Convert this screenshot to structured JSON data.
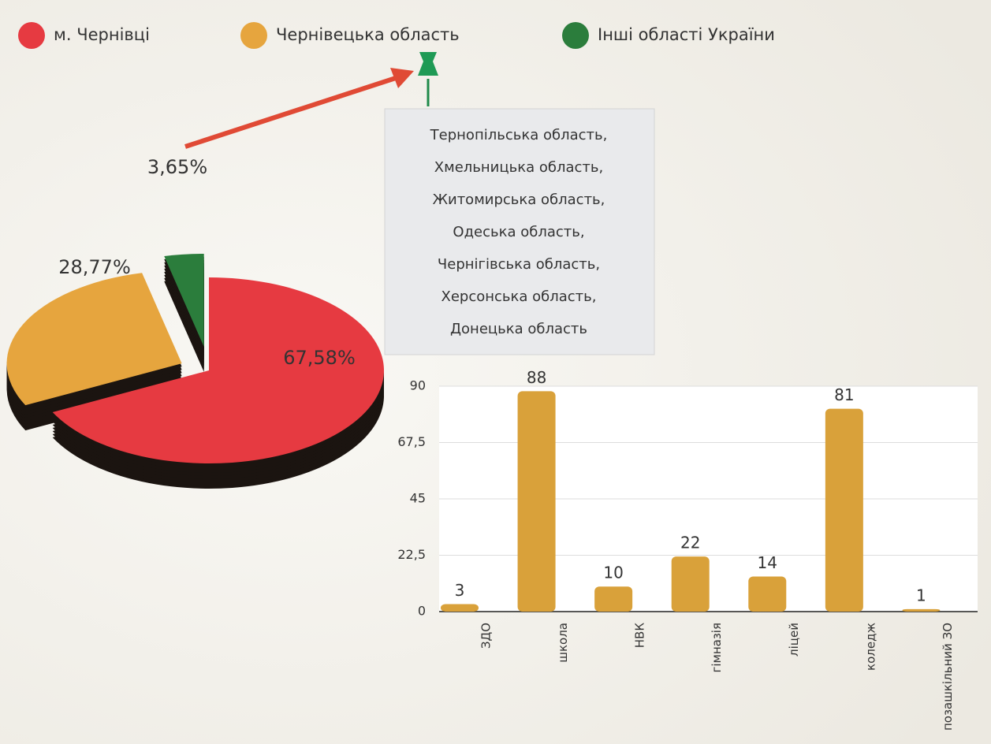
{
  "chart_data": [
    {
      "type": "pie",
      "categories": [
        "м. Чернівці",
        "Чернівецька область",
        "Інші області України"
      ],
      "values": [
        67.58,
        28.77,
        3.65
      ],
      "value_labels": [
        "67,58%",
        "28,77%",
        "3,65%"
      ],
      "colors": [
        "#e63a41",
        "#e6a53e",
        "#2b7d3c"
      ],
      "annotation": [
        "Тернопільська область,",
        "Хмельницька область,",
        "Житомирська область,",
        "Одеська область,",
        "Чернігівська область,",
        "Херсонська область,",
        "Донецька область"
      ]
    },
    {
      "type": "bar",
      "categories": [
        "ЗДО",
        "школа",
        "НВК",
        "гімназія",
        "ліцей",
        "коледж",
        "позашкільний ЗО"
      ],
      "values": [
        3,
        88,
        10,
        22,
        14,
        81,
        1
      ],
      "color": "#d9a13a",
      "ylim": [
        0,
        90
      ],
      "yticks": [
        0,
        {
          "value": 22.5,
          "label": "22,5"
        },
        45,
        {
          "value": 67.5,
          "label": "67,5"
        },
        90
      ],
      "grid": true
    }
  ]
}
